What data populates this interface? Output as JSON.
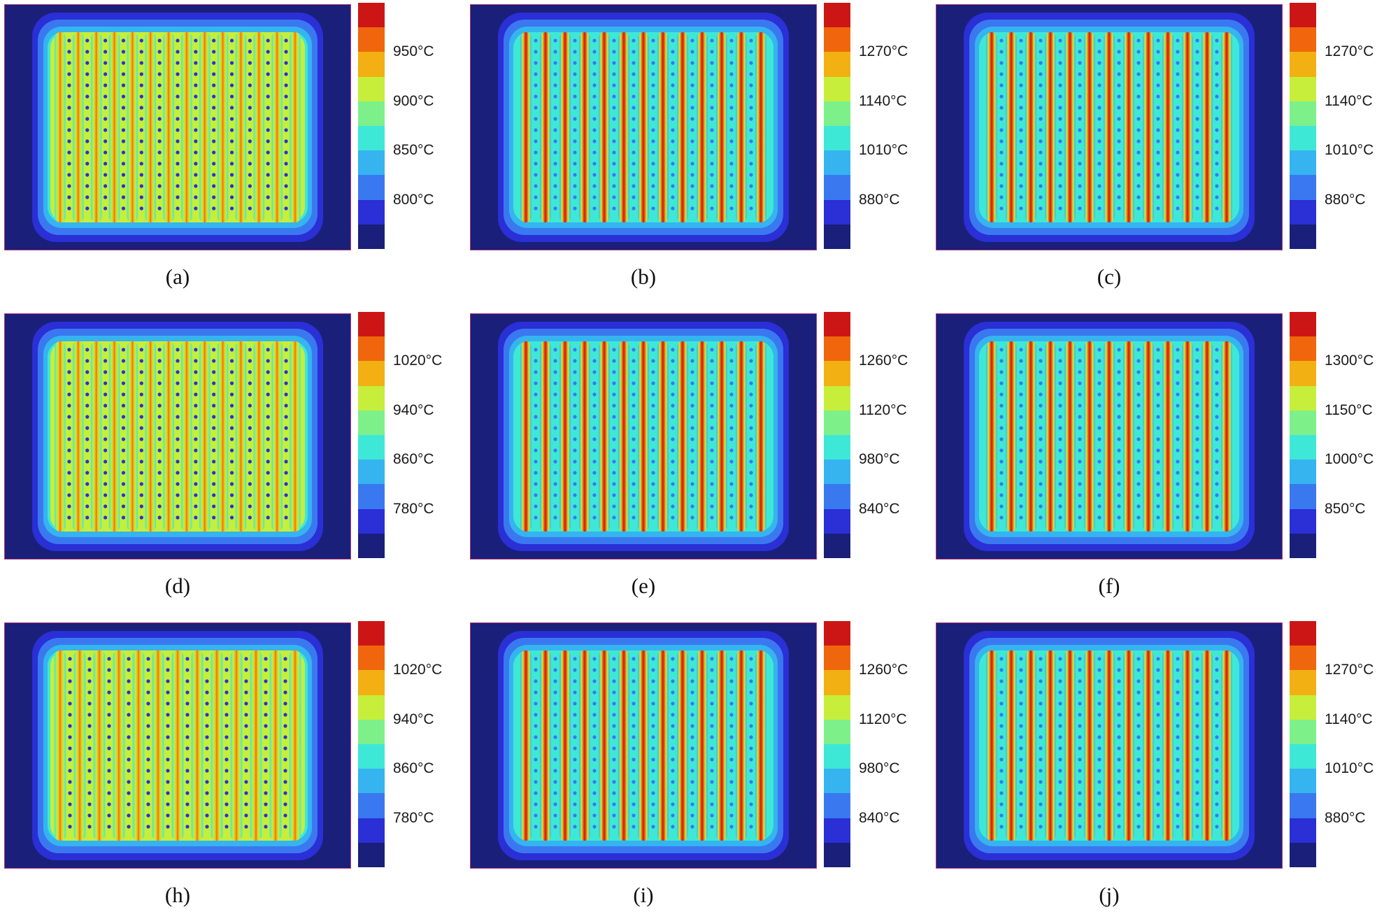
{
  "figure": {
    "palette": [
      "#1a1f7a",
      "#2a2fd6",
      "#3a78f0",
      "#35b4f0",
      "#3ee8d6",
      "#7ef08a",
      "#c6ee3a",
      "#f2b012",
      "#f0660c",
      "#cc1616"
    ],
    "panels": [
      {
        "id": "a",
        "caption": "(a)",
        "ticks": [
          "950°C",
          "900°C",
          "850°C",
          "800°C"
        ],
        "stripes": 14,
        "intensity": 0.75,
        "style": "warm-dots"
      },
      {
        "id": "b",
        "caption": "(b)",
        "ticks": [
          "1270°C",
          "1140°C",
          "1010°C",
          "880°C"
        ],
        "stripes": 13,
        "intensity": 0.95,
        "style": "hot"
      },
      {
        "id": "c",
        "caption": "(c)",
        "ticks": [
          "1270°C",
          "1140°C",
          "1010°C",
          "880°C"
        ],
        "stripes": 13,
        "intensity": 0.9,
        "style": "hot"
      },
      {
        "id": "d",
        "caption": "(d)",
        "ticks": [
          "1020°C",
          "940°C",
          "860°C",
          "780°C"
        ],
        "stripes": 14,
        "intensity": 0.65,
        "style": "warm-dots"
      },
      {
        "id": "e",
        "caption": "(e)",
        "ticks": [
          "1260°C",
          "1120°C",
          "980°C",
          "840°C"
        ],
        "stripes": 13,
        "intensity": 0.9,
        "style": "hot"
      },
      {
        "id": "f",
        "caption": "(f)",
        "ticks": [
          "1300°C",
          "1150°C",
          "1000°C",
          "850°C"
        ],
        "stripes": 13,
        "intensity": 0.85,
        "style": "hot"
      },
      {
        "id": "h",
        "caption": "(h)",
        "ticks": [
          "1020°C",
          "940°C",
          "860°C",
          "780°C"
        ],
        "stripes": 13,
        "intensity": 0.6,
        "style": "warm-dots"
      },
      {
        "id": "i",
        "caption": "(i)",
        "ticks": [
          "1260°C",
          "1120°C",
          "980°C",
          "840°C"
        ],
        "stripes": 13,
        "intensity": 0.92,
        "style": "hot"
      },
      {
        "id": "j",
        "caption": "(j)",
        "ticks": [
          "1270°C",
          "1140°C",
          "1010°C",
          "880°C"
        ],
        "stripes": 13,
        "intensity": 0.95,
        "style": "hot"
      }
    ]
  }
}
